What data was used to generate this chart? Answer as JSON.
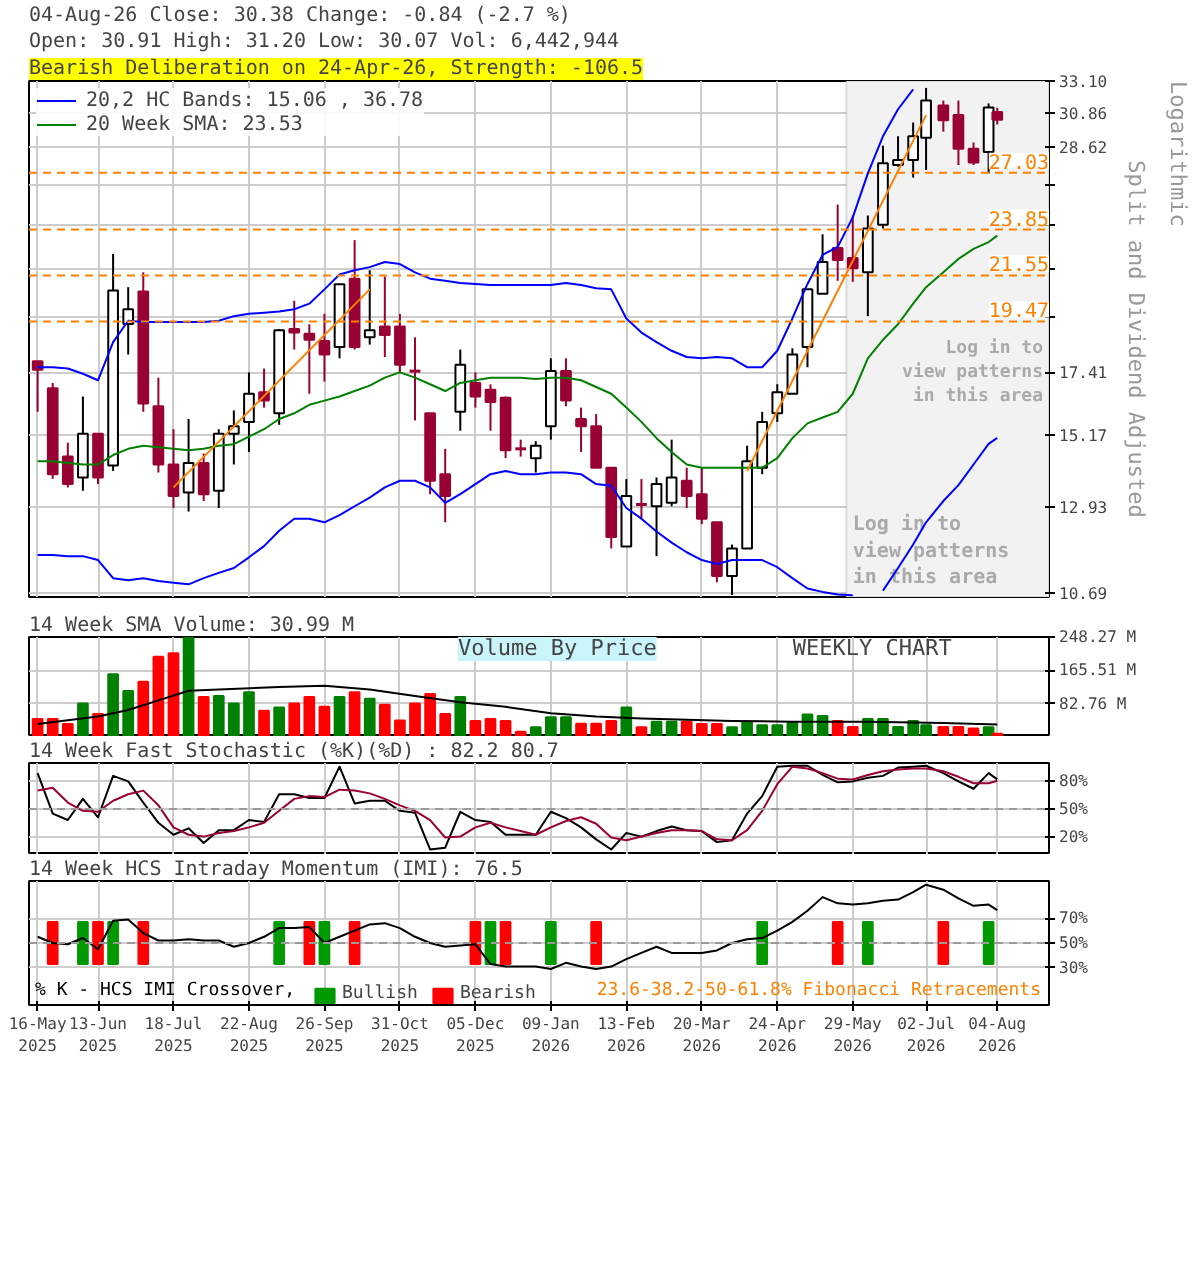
{
  "chart_data": [
    {
      "type": "candlestick",
      "title": "04-Aug-26   Close: 30.38   Change: -0.84 (-2.7 %)",
      "subtitle": "Open: 30.91   High: 31.20   Low: 30.07   Vol: 6,442,944",
      "ylabel": "Split and Dividend Adjusted",
      "annotations": [
        "Bearish Deliberation on 24-Apr-26, Strength: -106.5",
        "Logarithmic",
        "Log in to view patterns in this area"
      ],
      "x": [
        "2025-05-16",
        "2025-05-23",
        "2025-05-30",
        "2025-06-06",
        "2025-06-13",
        "2025-06-20",
        "2025-06-27",
        "2025-07-04",
        "2025-07-11",
        "2025-07-18",
        "2025-07-25",
        "2025-08-01",
        "2025-08-08",
        "2025-08-15",
        "2025-08-22",
        "2025-08-29",
        "2025-09-05",
        "2025-09-12",
        "2025-09-19",
        "2025-09-26",
        "2025-10-03",
        "2025-10-10",
        "2025-10-17",
        "2025-10-24",
        "2025-10-31",
        "2025-11-07",
        "2025-11-14",
        "2025-11-21",
        "2025-11-28",
        "2025-12-05",
        "2025-12-12",
        "2025-12-19",
        "2025-12-26",
        "2026-01-02",
        "2026-01-09",
        "2026-01-16",
        "2026-01-23",
        "2026-01-30",
        "2026-02-06",
        "2026-02-13",
        "2026-02-20",
        "2026-02-27",
        "2026-03-06",
        "2026-03-13",
        "2026-03-20",
        "2026-03-27",
        "2026-04-03",
        "2026-04-10",
        "2026-04-17",
        "2026-04-24",
        "2026-05-01",
        "2026-05-08",
        "2026-05-15",
        "2026-05-22",
        "2026-05-29",
        "2026-06-05",
        "2026-06-12",
        "2026-06-19",
        "2026-06-26",
        "2026-07-02",
        "2026-07-10",
        "2026-07-17",
        "2026-07-24",
        "2026-07-31",
        "2026-08-04"
      ],
      "ohlc": [
        [
          17.83,
          17.83,
          15.95,
          17.5
        ],
        [
          16.8,
          17.0,
          13.76,
          13.9
        ],
        [
          14.45,
          14.9,
          13.5,
          13.6
        ],
        [
          13.8,
          16.5,
          13.4,
          15.2
        ],
        [
          15.2,
          15.2,
          13.6,
          13.8
        ],
        [
          14.17,
          22.6,
          14.0,
          20.85
        ],
        [
          19.36,
          21.0,
          18.1,
          20.0
        ],
        [
          20.8,
          21.7,
          15.95,
          16.25
        ],
        [
          16.15,
          17.2,
          13.95,
          14.2
        ],
        [
          14.2,
          15.35,
          12.9,
          13.25
        ],
        [
          13.35,
          15.7,
          12.8,
          14.25
        ],
        [
          14.25,
          14.55,
          13.1,
          13.3
        ],
        [
          13.4,
          15.35,
          12.9,
          15.2
        ],
        [
          15.2,
          16.0,
          14.2,
          15.45
        ],
        [
          15.6,
          17.4,
          14.6,
          16.6
        ],
        [
          16.65,
          17.55,
          16.1,
          16.35
        ],
        [
          15.9,
          19.15,
          15.5,
          19.1
        ],
        [
          19.15,
          20.38,
          18.3,
          19.0
        ],
        [
          18.95,
          19.35,
          16.6,
          18.7
        ],
        [
          18.65,
          19.8,
          17.05,
          18.1
        ],
        [
          18.4,
          21.14,
          17.95,
          21.14
        ],
        [
          21.4,
          23.3,
          18.3,
          18.4
        ],
        [
          18.8,
          21.8,
          18.5,
          19.1
        ],
        [
          19.25,
          21.5,
          18.0,
          18.9
        ],
        [
          19.25,
          19.8,
          17.4,
          17.7
        ],
        [
          17.45,
          18.8,
          15.65,
          17.45
        ],
        [
          15.9,
          15.9,
          13.3,
          13.7
        ],
        [
          13.9,
          14.7,
          12.5,
          13.25
        ],
        [
          15.95,
          18.3,
          15.3,
          17.7
        ],
        [
          17.0,
          17.4,
          16.1,
          16.5
        ],
        [
          16.75,
          16.95,
          15.3,
          16.3
        ],
        [
          16.45,
          16.5,
          14.4,
          14.65
        ],
        [
          14.7,
          15.0,
          14.45,
          14.7
        ],
        [
          14.4,
          14.95,
          13.95,
          14.8
        ],
        [
          15.45,
          17.95,
          15.0,
          17.45
        ],
        [
          17.45,
          17.95,
          16.15,
          16.35
        ],
        [
          15.7,
          16.1,
          14.6,
          15.45
        ],
        [
          15.45,
          15.87,
          14.1,
          14.1
        ],
        [
          14.1,
          14.1,
          11.8,
          12.1
        ],
        [
          11.85,
          13.75,
          11.85,
          13.25
        ],
        [
          13.0,
          13.75,
          12.6,
          13.0
        ],
        [
          12.95,
          13.8,
          11.6,
          13.6
        ],
        [
          13.05,
          15.0,
          12.95,
          13.8
        ],
        [
          13.7,
          14.1,
          12.9,
          13.25
        ],
        [
          13.3,
          14.1,
          12.45,
          12.6
        ],
        [
          12.5,
          12.5,
          10.95,
          11.1
        ],
        [
          11.1,
          11.9,
          10.65,
          11.8
        ],
        [
          11.8,
          14.8,
          11.8,
          14.3
        ],
        [
          14.1,
          15.95,
          13.9,
          15.6
        ],
        [
          15.9,
          16.95,
          15.6,
          16.65
        ],
        [
          16.6,
          18.35,
          16.6,
          18.1
        ],
        [
          18.4,
          20.9,
          17.6,
          20.9
        ],
        [
          20.7,
          23.6,
          20.7,
          22.2
        ],
        [
          22.9,
          25.2,
          21.3,
          22.3
        ],
        [
          22.4,
          24.6,
          21.25,
          21.9
        ],
        [
          21.7,
          24.6,
          19.7,
          23.9
        ],
        [
          24.1,
          28.7,
          23.9,
          27.6
        ],
        [
          27.5,
          29.3,
          27.4,
          27.8
        ],
        [
          27.8,
          30.2,
          26.75,
          29.3
        ],
        [
          29.2,
          32.6,
          27.2,
          31.7
        ],
        [
          31.35,
          31.7,
          29.6,
          30.35
        ],
        [
          30.7,
          31.7,
          27.5,
          28.5
        ],
        [
          28.5,
          28.9,
          27.5,
          27.65
        ],
        [
          28.3,
          31.5,
          27.0,
          31.22
        ],
        [
          30.91,
          31.2,
          30.07,
          30.38
        ]
      ],
      "colors": [
        "#990033",
        "#990033",
        "#990033",
        "#ffffff",
        "#990033",
        "#ffffff",
        "#ffffff",
        "#990033",
        "#990033",
        "#990033",
        "#ffffff",
        "#990033",
        "#ffffff",
        "#ffffff",
        "#ffffff",
        "#990033",
        "#ffffff",
        "#990033",
        "#990033",
        "#990033",
        "#ffffff",
        "#990033",
        "#ffffff",
        "#990033",
        "#990033",
        "#990033",
        "#990033",
        "#990033",
        "#ffffff",
        "#990033",
        "#990033",
        "#990033",
        "#990033",
        "#ffffff",
        "#ffffff",
        "#990033",
        "#990033",
        "#990033",
        "#990033",
        "#ffffff",
        "#990033",
        "#ffffff",
        "#ffffff",
        "#990033",
        "#990033",
        "#990033",
        "#ffffff",
        "#ffffff",
        "#ffffff",
        "#ffffff",
        "#ffffff",
        "#ffffff",
        "#ffffff",
        "#990033",
        "#990033",
        "#ffffff",
        "#ffffff",
        "#ffffff",
        "#ffffff",
        "#ffffff",
        "#990033",
        "#990033",
        "#990033",
        "#ffffff",
        "#990033"
      ],
      "series": [
        {
          "type": "line",
          "name": "20,2 HC Bands: 15.06 , 36.78",
          "color": "#0000ff",
          "values": [
            17.6,
            17.6,
            17.55,
            17.35,
            17.1,
            18.6,
            19.5,
            19.45,
            19.45,
            19.45,
            19.45,
            19.45,
            19.5,
            19.7,
            19.8,
            19.85,
            19.9,
            20.0,
            20.25,
            20.9,
            21.6,
            21.8,
            21.95,
            22.2,
            22.1,
            21.7,
            21.4,
            21.3,
            21.2,
            21.15,
            21.1,
            21.1,
            21.1,
            21.1,
            21.1,
            21.2,
            21.1,
            20.95,
            20.9,
            19.6,
            19.0,
            18.6,
            18.25,
            18.0,
            17.95,
            18.0,
            17.95,
            17.6,
            17.6,
            18.25,
            19.6,
            21.15,
            22.55,
            22.95,
            24.5,
            27.0,
            29.3,
            31.1,
            32.5,
            null,
            null,
            null,
            null,
            null,
            null
          ]
        },
        {
          "type": "line",
          "color": "#0000ff",
          "values": [
            11.63,
            11.63,
            11.6,
            11.6,
            11.5,
            11.05,
            11.0,
            11.05,
            10.98,
            10.94,
            10.9,
            11.05,
            11.18,
            11.3,
            11.57,
            11.86,
            12.27,
            12.6,
            12.6,
            12.5,
            12.7,
            12.95,
            13.2,
            13.5,
            13.7,
            13.7,
            13.5,
            13.05,
            13.3,
            13.6,
            13.9,
            14.0,
            13.9,
            13.9,
            13.95,
            13.95,
            13.9,
            13.6,
            13.55,
            12.9,
            12.6,
            12.25,
            11.95,
            11.7,
            11.5,
            11.4,
            11.5,
            11.5,
            11.5,
            11.32,
            11.05,
            10.8,
            10.72,
            10.66,
            10.64,
            null,
            10.75,
            11.3,
            11.9,
            12.5,
            13.1,
            13.57,
            14.2,
            14.86,
            15.06
          ]
        },
        {
          "type": "line",
          "name": "20 Week SMA: 23.53",
          "color": "#008000",
          "values": [
            14.3,
            14.3,
            14.25,
            14.2,
            14.2,
            14.5,
            14.7,
            14.8,
            14.75,
            14.7,
            14.65,
            14.7,
            14.8,
            14.85,
            15.1,
            15.35,
            15.7,
            15.9,
            16.2,
            16.35,
            16.5,
            16.7,
            16.9,
            17.2,
            17.4,
            17.2,
            16.95,
            16.7,
            17.0,
            17.1,
            17.2,
            17.2,
            17.2,
            17.15,
            17.2,
            17.2,
            17.1,
            16.85,
            16.6,
            16.1,
            15.6,
            15.05,
            14.6,
            14.2,
            14.1,
            14.1,
            14.1,
            14.1,
            14.1,
            14.4,
            15.05,
            15.55,
            15.75,
            15.95,
            16.6,
            17.95,
            18.7,
            19.35,
            20.25,
            21.0,
            21.7,
            22.35,
            22.85,
            23.2,
            23.53
          ]
        },
        {
          "type": "line",
          "color": "#ff8000",
          "x": [
            "2025-07-18",
            "2025-10-17"
          ],
          "values": [
            13.5,
            20.9
          ]
        },
        {
          "type": "line",
          "color": "#ff8000",
          "x": [
            "2026-04-10",
            "2026-07-02"
          ],
          "values": [
            14.0,
            30.7
          ]
        }
      ],
      "xlim": [
        "2025-05-12",
        "2026-08-28"
      ],
      "xticks": [
        {
          "value": "2025-05-16",
          "label": null
        },
        {
          "value": "2025-06-13",
          "label": null
        },
        {
          "value": "2025-07-18",
          "label": null
        },
        {
          "value": "2025-08-22",
          "label": null
        },
        {
          "value": "2025-09-26",
          "label": null
        },
        {
          "value": "2025-10-31",
          "label": null
        },
        {
          "value": "2025-12-05",
          "label": null
        },
        {
          "value": "2026-01-09",
          "label": null
        },
        {
          "value": "2026-02-13",
          "label": null
        },
        {
          "value": "2026-03-20",
          "label": null
        },
        {
          "value": "2026-04-24",
          "label": null
        },
        {
          "value": "2026-05-29",
          "label": null
        },
        {
          "value": "2026-07-02",
          "label": null
        },
        {
          "value": "2026-08-04",
          "label": null
        }
      ],
      "ylim": [
        10.6,
        33.1
      ],
      "log": "y",
      "yticks": [
        10.69,
        12.93,
        15.17,
        17.41,
        {
          "value": 19.65,
          "label": null
        },
        {
          "value": 21.89,
          "label": null
        },
        {
          "value": 24.13,
          "label": null
        },
        {
          "value": 26.37,
          "label": null
        },
        28.62,
        30.86,
        {
          "value": 33.1,
          "label": "33.10"
        }
      ],
      "ref_lines": [
        {
          "axis": "y",
          "value": 27.03,
          "label": "27.03",
          "color": "#ff8000",
          "line_style": "dashed"
        },
        {
          "axis": "y",
          "value": 23.85,
          "label": "23.85",
          "color": "#ff8000",
          "line_style": "dashed"
        },
        {
          "axis": "y",
          "value": 21.55,
          "label": "21.55",
          "color": "#ff8000",
          "line_style": "dashed"
        },
        {
          "axis": "y",
          "value": 19.47,
          "label": "19.47",
          "color": "#ff8000",
          "line_style": "dashed"
        }
      ],
      "bands": [
        {
          "axis": "x",
          "from": "2026-05-26",
          "to": "2026-08-28",
          "label": "Log in to view patterns in this area",
          "color": "#f2f2f2"
        }
      ],
      "grid": true,
      "legend": "top left",
      "tick_labels": "y"
    },
    {
      "type": "bar",
      "title": "14 Week SMA Volume: 30.99 M",
      "annotations": [
        "Volume By Price",
        "WEEKLY CHART"
      ],
      "x": [
        "2025-05-16",
        "2025-05-23",
        "2025-05-30",
        "2025-06-06",
        "2025-06-13",
        "2025-06-20",
        "2025-06-27",
        "2025-07-04",
        "2025-07-11",
        "2025-07-18",
        "2025-07-25",
        "2025-08-01",
        "2025-08-08",
        "2025-08-15",
        "2025-08-22",
        "2025-08-29",
        "2025-09-05",
        "2025-09-12",
        "2025-09-19",
        "2025-09-26",
        "2025-10-03",
        "2025-10-10",
        "2025-10-17",
        "2025-10-24",
        "2025-10-31",
        "2025-11-07",
        "2025-11-14",
        "2025-11-21",
        "2025-11-28",
        "2025-12-05",
        "2025-12-12",
        "2025-12-19",
        "2025-12-26",
        "2026-01-02",
        "2026-01-09",
        "2026-01-16",
        "2026-01-23",
        "2026-01-30",
        "2026-02-06",
        "2026-02-13",
        "2026-02-20",
        "2026-02-27",
        "2026-03-06",
        "2026-03-13",
        "2026-03-20",
        "2026-03-27",
        "2026-04-03",
        "2026-04-10",
        "2026-04-17",
        "2026-04-24",
        "2026-05-01",
        "2026-05-08",
        "2026-05-15",
        "2026-05-22",
        "2026-05-29",
        "2026-06-05",
        "2026-06-12",
        "2026-06-19",
        "2026-06-26",
        "2026-07-02",
        "2026-07-10",
        "2026-07-17",
        "2026-07-24",
        "2026-07-31",
        "2026-08-04"
      ],
      "values": [
        44.5,
        44.5,
        32,
        83,
        57,
        156,
        114.5,
        137,
        199,
        208,
        246,
        99,
        102,
        83,
        111,
        65,
        73,
        83,
        99,
        75,
        99,
        111,
        95,
        80,
        41,
        83,
        107,
        57,
        99,
        40,
        44.5,
        40,
        13,
        24,
        49,
        49,
        33,
        33,
        40,
        73,
        24,
        38,
        38,
        38,
        32,
        32,
        24,
        38,
        29,
        29,
        35,
        56,
        52,
        40,
        25,
        44.5,
        44.5,
        25,
        40,
        29,
        25,
        25,
        21,
        24,
        8
      ],
      "colors": [
        "#ff0000",
        "#ff0000",
        "#ff0000",
        "#008000",
        "#ff0000",
        "#008000",
        "#008000",
        "#ff0000",
        "#ff0000",
        "#ff0000",
        "#008000",
        "#ff0000",
        "#008000",
        "#008000",
        "#008000",
        "#ff0000",
        "#008000",
        "#ff0000",
        "#ff0000",
        "#ff0000",
        "#008000",
        "#ff0000",
        "#008000",
        "#ff0000",
        "#ff0000",
        "#ff0000",
        "#ff0000",
        "#ff0000",
        "#008000",
        "#ff0000",
        "#ff0000",
        "#ff0000",
        "#ff0000",
        "#008000",
        "#008000",
        "#008000",
        "#ff0000",
        "#ff0000",
        "#ff0000",
        "#008000",
        "#ff0000",
        "#008000",
        "#008000",
        "#ff0000",
        "#ff0000",
        "#ff0000",
        "#008000",
        "#008000",
        "#008000",
        "#008000",
        "#008000",
        "#008000",
        "#008000",
        "#ff0000",
        "#ff0000",
        "#008000",
        "#008000",
        "#008000",
        "#008000",
        "#008000",
        "#ff0000",
        "#ff0000",
        "#ff0000",
        "#008000",
        "#ff0000"
      ],
      "series": [
        {
          "type": "line",
          "color": "#000000",
          "x": [
            "2025-05-16",
            "2025-06-13",
            "2025-06-27",
            "2025-07-11",
            "2025-07-25",
            "2025-08-08",
            "2025-09-05",
            "2025-09-26",
            "2025-10-17",
            "2025-11-07",
            "2025-11-28",
            "2025-12-19",
            "2026-01-09",
            "2026-01-30",
            "2026-02-20",
            "2026-03-13",
            "2026-04-03",
            "2026-05-01",
            "2026-06-05",
            "2026-07-10",
            "2026-08-04"
          ],
          "values": [
            32,
            51,
            67,
            91,
            115,
            118,
            124,
            127,
            118,
            102,
            86,
            75,
            59,
            51,
            46,
            43,
            40,
            38,
            38,
            35,
            30.99
          ]
        }
      ],
      "xlim": [
        "2025-05-12",
        "2026-08-28"
      ],
      "xticks": [
        {
          "value": "2025-05-16",
          "label": null
        },
        {
          "value": "2025-06-13",
          "label": null
        },
        {
          "value": "2025-07-18",
          "label": null
        },
        {
          "value": "2025-08-22",
          "label": null
        },
        {
          "value": "2025-09-26",
          "label": null
        },
        {
          "value": "2025-10-31",
          "label": null
        },
        {
          "value": "2025-12-05",
          "label": null
        },
        {
          "value": "2026-01-09",
          "label": null
        },
        {
          "value": "2026-02-13",
          "label": null
        },
        {
          "value": "2026-03-20",
          "label": null
        },
        {
          "value": "2026-04-24",
          "label": null
        },
        {
          "value": "2026-05-29",
          "label": null
        },
        {
          "value": "2026-07-02",
          "label": null
        },
        {
          "value": "2026-08-04",
          "label": null
        }
      ],
      "ylim": [
        0,
        248.27
      ],
      "yticks": [
        {
          "value": 82.76,
          "label": "82.76 M"
        },
        {
          "value": 165.51,
          "label": "165.51 M"
        },
        {
          "value": 248.27,
          "label": "248.27 M"
        }
      ],
      "grid": true,
      "tick_labels": "y"
    },
    {
      "type": "line",
      "title": "14 Week Fast Stochastic (%K)(%D) : 82.2 80.7",
      "x": [
        "2025-05-16",
        "2025-05-23",
        "2025-05-30",
        "2025-06-06",
        "2025-06-13",
        "2025-06-20",
        "2025-06-27",
        "2025-07-04",
        "2025-07-11",
        "2025-07-18",
        "2025-07-25",
        "2025-08-01",
        "2025-08-08",
        "2025-08-15",
        "2025-08-22",
        "2025-08-29",
        "2025-09-05",
        "2025-09-12",
        "2025-09-19",
        "2025-09-26",
        "2025-10-03",
        "2025-10-10",
        "2025-10-17",
        "2025-10-24",
        "2025-10-31",
        "2025-11-07",
        "2025-11-14",
        "2025-11-21",
        "2025-11-28",
        "2025-12-05",
        "2025-12-12",
        "2025-12-19",
        "2025-12-26",
        "2026-01-02",
        "2026-01-09",
        "2026-01-16",
        "2026-01-23",
        "2026-01-30",
        "2026-02-06",
        "2026-02-13",
        "2026-02-20",
        "2026-02-27",
        "2026-03-06",
        "2026-03-13",
        "2026-03-20",
        "2026-03-27",
        "2026-04-03",
        "2026-04-10",
        "2026-04-17",
        "2026-04-24",
        "2026-05-01",
        "2026-05-08",
        "2026-05-15",
        "2026-05-22",
        "2026-05-29",
        "2026-06-05",
        "2026-06-12",
        "2026-06-19",
        "2026-06-26",
        "2026-07-02",
        "2026-07-10",
        "2026-07-17",
        "2026-07-24",
        "2026-07-31",
        "2026-08-04"
      ],
      "series": [
        {
          "color": "#000000",
          "values": [
            89,
            45,
            38,
            61,
            41,
            86,
            80,
            57,
            35,
            22,
            29,
            13,
            27,
            27,
            38,
            36,
            66,
            66,
            62,
            62,
            96,
            56,
            59,
            59,
            48,
            46,
            6,
            8,
            47,
            38,
            36,
            22,
            22,
            22,
            47,
            40,
            30,
            17,
            6,
            24,
            20,
            26,
            31,
            27,
            26,
            14,
            16,
            45,
            64,
            96,
            97,
            97,
            87,
            79,
            80,
            84,
            86,
            95,
            96,
            97,
            89,
            80,
            72,
            89,
            82.2
          ]
        },
        {
          "color": "#990033",
          "values": [
            70,
            73,
            57,
            48,
            47,
            59,
            66,
            70,
            54,
            30,
            22,
            20,
            24,
            26,
            30,
            35,
            48,
            61,
            64,
            63,
            71,
            70,
            67,
            61,
            54,
            48,
            38,
            19,
            20,
            30,
            35,
            30,
            26,
            22,
            30,
            37,
            41,
            34,
            19,
            16,
            20,
            24,
            27,
            27,
            26,
            17,
            16,
            27,
            48,
            77,
            96,
            94,
            89,
            83,
            82,
            87,
            91,
            93,
            94,
            94,
            91,
            85,
            78,
            78,
            80.7
          ]
        }
      ],
      "xlim": [
        "2025-05-12",
        "2026-08-28"
      ],
      "xticks": [
        {
          "value": "2025-05-16",
          "label": null
        },
        {
          "value": "2025-06-13",
          "label": null
        },
        {
          "value": "2025-07-18",
          "label": null
        },
        {
          "value": "2025-08-22",
          "label": null
        },
        {
          "value": "2025-09-26",
          "label": null
        },
        {
          "value": "2025-10-31",
          "label": null
        },
        {
          "value": "2025-12-05",
          "label": null
        },
        {
          "value": "2026-01-09",
          "label": null
        },
        {
          "value": "2026-02-13",
          "label": null
        },
        {
          "value": "2026-03-20",
          "label": null
        },
        {
          "value": "2026-04-24",
          "label": null
        },
        {
          "value": "2026-05-29",
          "label": null
        },
        {
          "value": "2026-07-02",
          "label": null
        },
        {
          "value": "2026-08-04",
          "label": null
        }
      ],
      "ylim": [
        0,
        100
      ],
      "yticks": [
        {
          "value": 20,
          "label": "20%"
        },
        {
          "value": 50,
          "label": "50%"
        },
        {
          "value": 80,
          "label": "80%"
        }
      ],
      "ref_lines": [
        {
          "axis": "y",
          "value": 50,
          "color": "#999999",
          "line_style": "dashed"
        }
      ],
      "grid": true,
      "tick_labels": "y"
    },
    {
      "type": "line",
      "title": "14 Week HCS Intraday Momentum (IMI): 76.5",
      "legend_title": "% K - HCS IMI Crossover,",
      "annotations": [
        "23.6-38.2-50-61.8% Fibonacci Retracements"
      ],
      "x": [
        "2025-05-16",
        "2025-05-23",
        "2025-05-30",
        "2025-06-06",
        "2025-06-13",
        "2025-06-20",
        "2025-06-27",
        "2025-07-04",
        "2025-07-11",
        "2025-07-18",
        "2025-07-25",
        "2025-08-01",
        "2025-08-08",
        "2025-08-15",
        "2025-08-22",
        "2025-08-29",
        "2025-09-05",
        "2025-09-12",
        "2025-09-19",
        "2025-09-26",
        "2025-10-03",
        "2025-10-10",
        "2025-10-17",
        "2025-10-24",
        "2025-10-31",
        "2025-11-07",
        "2025-11-14",
        "2025-11-21",
        "2025-11-28",
        "2025-12-05",
        "2025-12-12",
        "2025-12-19",
        "2025-12-26",
        "2026-01-02",
        "2026-01-09",
        "2026-01-16",
        "2026-01-23",
        "2026-01-30",
        "2026-02-06",
        "2026-02-13",
        "2026-02-20",
        "2026-02-27",
        "2026-03-06",
        "2026-03-13",
        "2026-03-20",
        "2026-03-27",
        "2026-04-03",
        "2026-04-10",
        "2026-04-17",
        "2026-04-24",
        "2026-05-01",
        "2026-05-08",
        "2026-05-15",
        "2026-05-22",
        "2026-05-29",
        "2026-06-05",
        "2026-06-12",
        "2026-06-19",
        "2026-06-26",
        "2026-07-02",
        "2026-07-10",
        "2026-07-17",
        "2026-07-24",
        "2026-07-31",
        "2026-08-04"
      ],
      "series": [
        {
          "type": "bar",
          "name": "Bullish",
          "color": "#009900",
          "values": [
            null,
            null,
            null,
            34,
            null,
            34,
            null,
            null,
            null,
            null,
            null,
            null,
            null,
            null,
            null,
            null,
            34,
            null,
            null,
            34,
            null,
            null,
            null,
            null,
            null,
            null,
            null,
            null,
            null,
            null,
            34,
            null,
            null,
            null,
            34,
            null,
            null,
            null,
            null,
            null,
            null,
            null,
            null,
            null,
            null,
            null,
            null,
            null,
            34,
            null,
            null,
            null,
            null,
            null,
            null,
            34,
            null,
            null,
            null,
            null,
            null,
            null,
            null,
            34,
            null
          ],
          "base": [
            null,
            null,
            null,
            33,
            null,
            33,
            null,
            null,
            null,
            null,
            null,
            null,
            null,
            null,
            null,
            null,
            33,
            null,
            null,
            33,
            null,
            null,
            null,
            null,
            null,
            null,
            null,
            null,
            null,
            null,
            33,
            null,
            null,
            null,
            33,
            null,
            null,
            null,
            null,
            null,
            null,
            null,
            null,
            null,
            null,
            null,
            null,
            null,
            33,
            null,
            null,
            null,
            null,
            null,
            null,
            33,
            null,
            null,
            null,
            null,
            null,
            null,
            null,
            33,
            null
          ]
        },
        {
          "type": "bar",
          "name": "Bearish",
          "color": "#ff0000",
          "values": [
            null,
            34,
            null,
            null,
            34,
            null,
            null,
            34,
            null,
            null,
            null,
            null,
            null,
            null,
            null,
            null,
            null,
            null,
            34,
            null,
            null,
            34,
            null,
            null,
            null,
            null,
            null,
            null,
            null,
            34,
            null,
            34,
            null,
            null,
            null,
            null,
            null,
            34,
            null,
            null,
            null,
            null,
            null,
            null,
            null,
            null,
            null,
            null,
            null,
            null,
            null,
            null,
            null,
            34,
            null,
            null,
            null,
            null,
            null,
            null,
            34,
            null,
            null,
            null,
            null
          ],
          "base": [
            null,
            33,
            null,
            null,
            33,
            null,
            null,
            33,
            null,
            null,
            null,
            null,
            null,
            null,
            null,
            null,
            null,
            null,
            33,
            null,
            null,
            33,
            null,
            null,
            null,
            null,
            null,
            null,
            null,
            33,
            null,
            33,
            null,
            null,
            null,
            null,
            null,
            33,
            null,
            null,
            null,
            null,
            null,
            null,
            null,
            null,
            null,
            null,
            null,
            null,
            null,
            null,
            null,
            33,
            null,
            null,
            null,
            null,
            null,
            null,
            33,
            null,
            null,
            null,
            null
          ]
        },
        {
          "type": "line",
          "color": "#000000",
          "values": [
            55,
            50,
            49,
            54,
            45,
            68,
            69,
            58,
            52,
            52,
            53,
            52,
            52,
            47,
            50,
            55,
            62,
            62,
            63,
            50,
            55,
            60,
            65,
            66,
            62,
            55,
            50,
            47,
            48,
            49,
            33,
            31,
            31,
            31,
            29,
            34,
            31,
            29,
            31,
            37,
            42,
            47,
            42,
            42,
            42,
            44,
            50,
            53,
            54,
            60,
            67,
            76,
            87,
            82,
            81,
            82,
            84,
            85,
            91,
            97,
            93,
            86,
            80,
            81,
            76.5
          ]
        }
      ],
      "xlim": [
        "2025-05-12",
        "2026-08-28"
      ],
      "xticks": [
        {
          "value": "2025-05-16",
          "label": "16-May\n2025"
        },
        {
          "value": "2025-06-13",
          "label": "13-Jun\n2025"
        },
        {
          "value": "2025-07-18",
          "label": "18-Jul\n2025"
        },
        {
          "value": "2025-08-22",
          "label": "22-Aug\n2025"
        },
        {
          "value": "2025-09-26",
          "label": "26-Sep\n2025"
        },
        {
          "value": "2025-10-31",
          "label": "31-Oct\n2025"
        },
        {
          "value": "2025-12-05",
          "label": "05-Dec\n2025"
        },
        {
          "value": "2026-01-09",
          "label": "09-Jan\n2026"
        },
        {
          "value": "2026-02-13",
          "label": "13-Feb\n2026"
        },
        {
          "value": "2026-03-20",
          "label": "20-Mar\n2026"
        },
        {
          "value": "2026-04-24",
          "label": "24-Apr\n2026"
        },
        {
          "value": "2026-05-29",
          "label": "29-May\n2026"
        },
        {
          "value": "2026-07-02",
          "label": "02-Jul\n2026"
        },
        {
          "value": "2026-08-04",
          "label": "04-Aug\n2026"
        }
      ],
      "ylim": [
        0,
        100
      ],
      "yticks": [
        {
          "value": 30,
          "label": "30%"
        },
        {
          "value": 50,
          "label": "50%"
        },
        {
          "value": 70,
          "label": "70%"
        }
      ],
      "ref_lines": [
        {
          "axis": "y",
          "value": 50,
          "color": "#999999",
          "line_style": "dashed"
        }
      ],
      "grid": true,
      "legend": "bottom"
    }
  ]
}
